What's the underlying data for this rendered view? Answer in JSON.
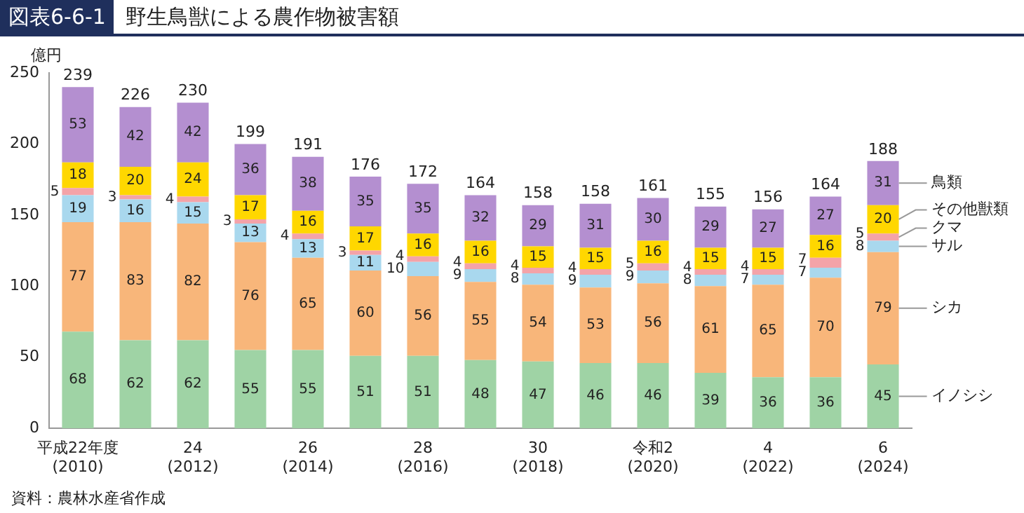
{
  "chart_data": {
    "type": "bar",
    "stacked": true,
    "title": "野生鳥獣による農作物被害額",
    "ylabel": "億円",
    "annotations": [
      "図表6-6-1",
      "資料：農林水産省作成"
    ],
    "categories": [
      "平成22年度\n(2010)",
      null,
      "24\n(2012)",
      null,
      "26\n(2014)",
      null,
      "28\n(2016)",
      null,
      "30\n(2018)",
      null,
      "令和2\n(2020)",
      null,
      "4\n(2022)",
      null,
      "6\n(2024)"
    ],
    "series": [
      {
        "name": "イノシシ",
        "color": "#9fd3a5",
        "values": [
          68,
          62,
          62,
          55,
          55,
          51,
          51,
          48,
          47,
          46,
          46,
          39,
          36,
          36,
          45
        ]
      },
      {
        "name": "シカ",
        "color": "#f8b67a",
        "values": [
          77,
          83,
          82,
          76,
          65,
          60,
          56,
          55,
          54,
          53,
          56,
          61,
          65,
          70,
          79
        ]
      },
      {
        "name": "サル",
        "color": "#a9d8ee",
        "values": [
          19,
          16,
          15,
          13,
          13,
          11,
          10,
          9,
          8,
          9,
          9,
          8,
          7,
          7,
          8
        ]
      },
      {
        "name": "クマ",
        "color": "#f4a3a8",
        "values": [
          5,
          3,
          4,
          3,
          4,
          3,
          4,
          4,
          4,
          4,
          5,
          4,
          4,
          7,
          5
        ]
      },
      {
        "name": "その他獣類",
        "color": "#ffd700",
        "values": [
          18,
          20,
          24,
          17,
          16,
          17,
          16,
          16,
          15,
          15,
          16,
          15,
          15,
          16,
          20
        ]
      },
      {
        "name": "鳥類",
        "color": "#b48fd0",
        "values": [
          53,
          42,
          42,
          36,
          38,
          35,
          35,
          32,
          29,
          31,
          30,
          29,
          27,
          27,
          31
        ]
      }
    ],
    "totals": [
      "239",
      "226",
      "230",
      "199",
      "191",
      "176",
      "172",
      "164",
      "158",
      "158",
      "161",
      "155",
      "156",
      "164",
      "188"
    ],
    "ylim": [
      0,
      250
    ],
    "yticks": [
      0,
      50,
      100,
      150,
      200,
      250
    ],
    "grid": false,
    "legend": false,
    "data_labels": true
  }
}
